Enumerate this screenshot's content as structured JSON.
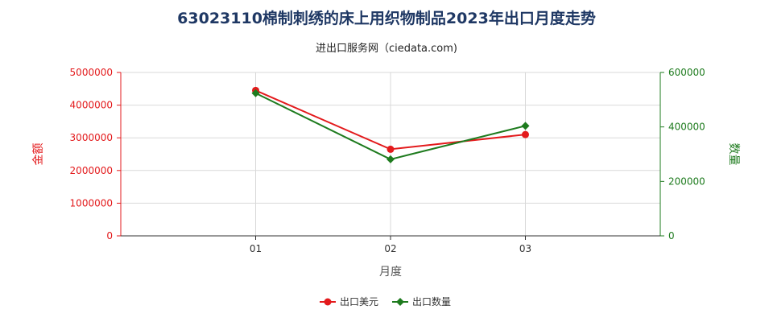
{
  "title": "63023110棉制刺绣的床上用织物制品2023年出口月度走势",
  "subtitle": "进出口服务网（ciedata.com)",
  "chart_data": {
    "type": "line",
    "categories": [
      "01",
      "02",
      "03"
    ],
    "xlabel": "月度",
    "y_left": {
      "label": "金额",
      "ylim": [
        0,
        5000000
      ],
      "ticks": [
        0,
        1000000,
        2000000,
        3000000,
        4000000,
        5000000
      ],
      "color": "#e31a1c"
    },
    "y_right": {
      "label": "数量",
      "ylim": [
        0,
        600000
      ],
      "ticks": [
        0,
        200000,
        400000,
        600000
      ],
      "color": "#1e7b1e"
    },
    "series": [
      {
        "name": "出口美元",
        "axis": "left",
        "color": "#e31a1c",
        "marker": "circle",
        "values": [
          4450000,
          2650000,
          3100000
        ]
      },
      {
        "name": "出口数量",
        "axis": "right",
        "color": "#1e7b1e",
        "marker": "diamond",
        "values": [
          524000,
          281000,
          404000
        ]
      }
    ],
    "grid": true,
    "legend": "bottom-center"
  }
}
